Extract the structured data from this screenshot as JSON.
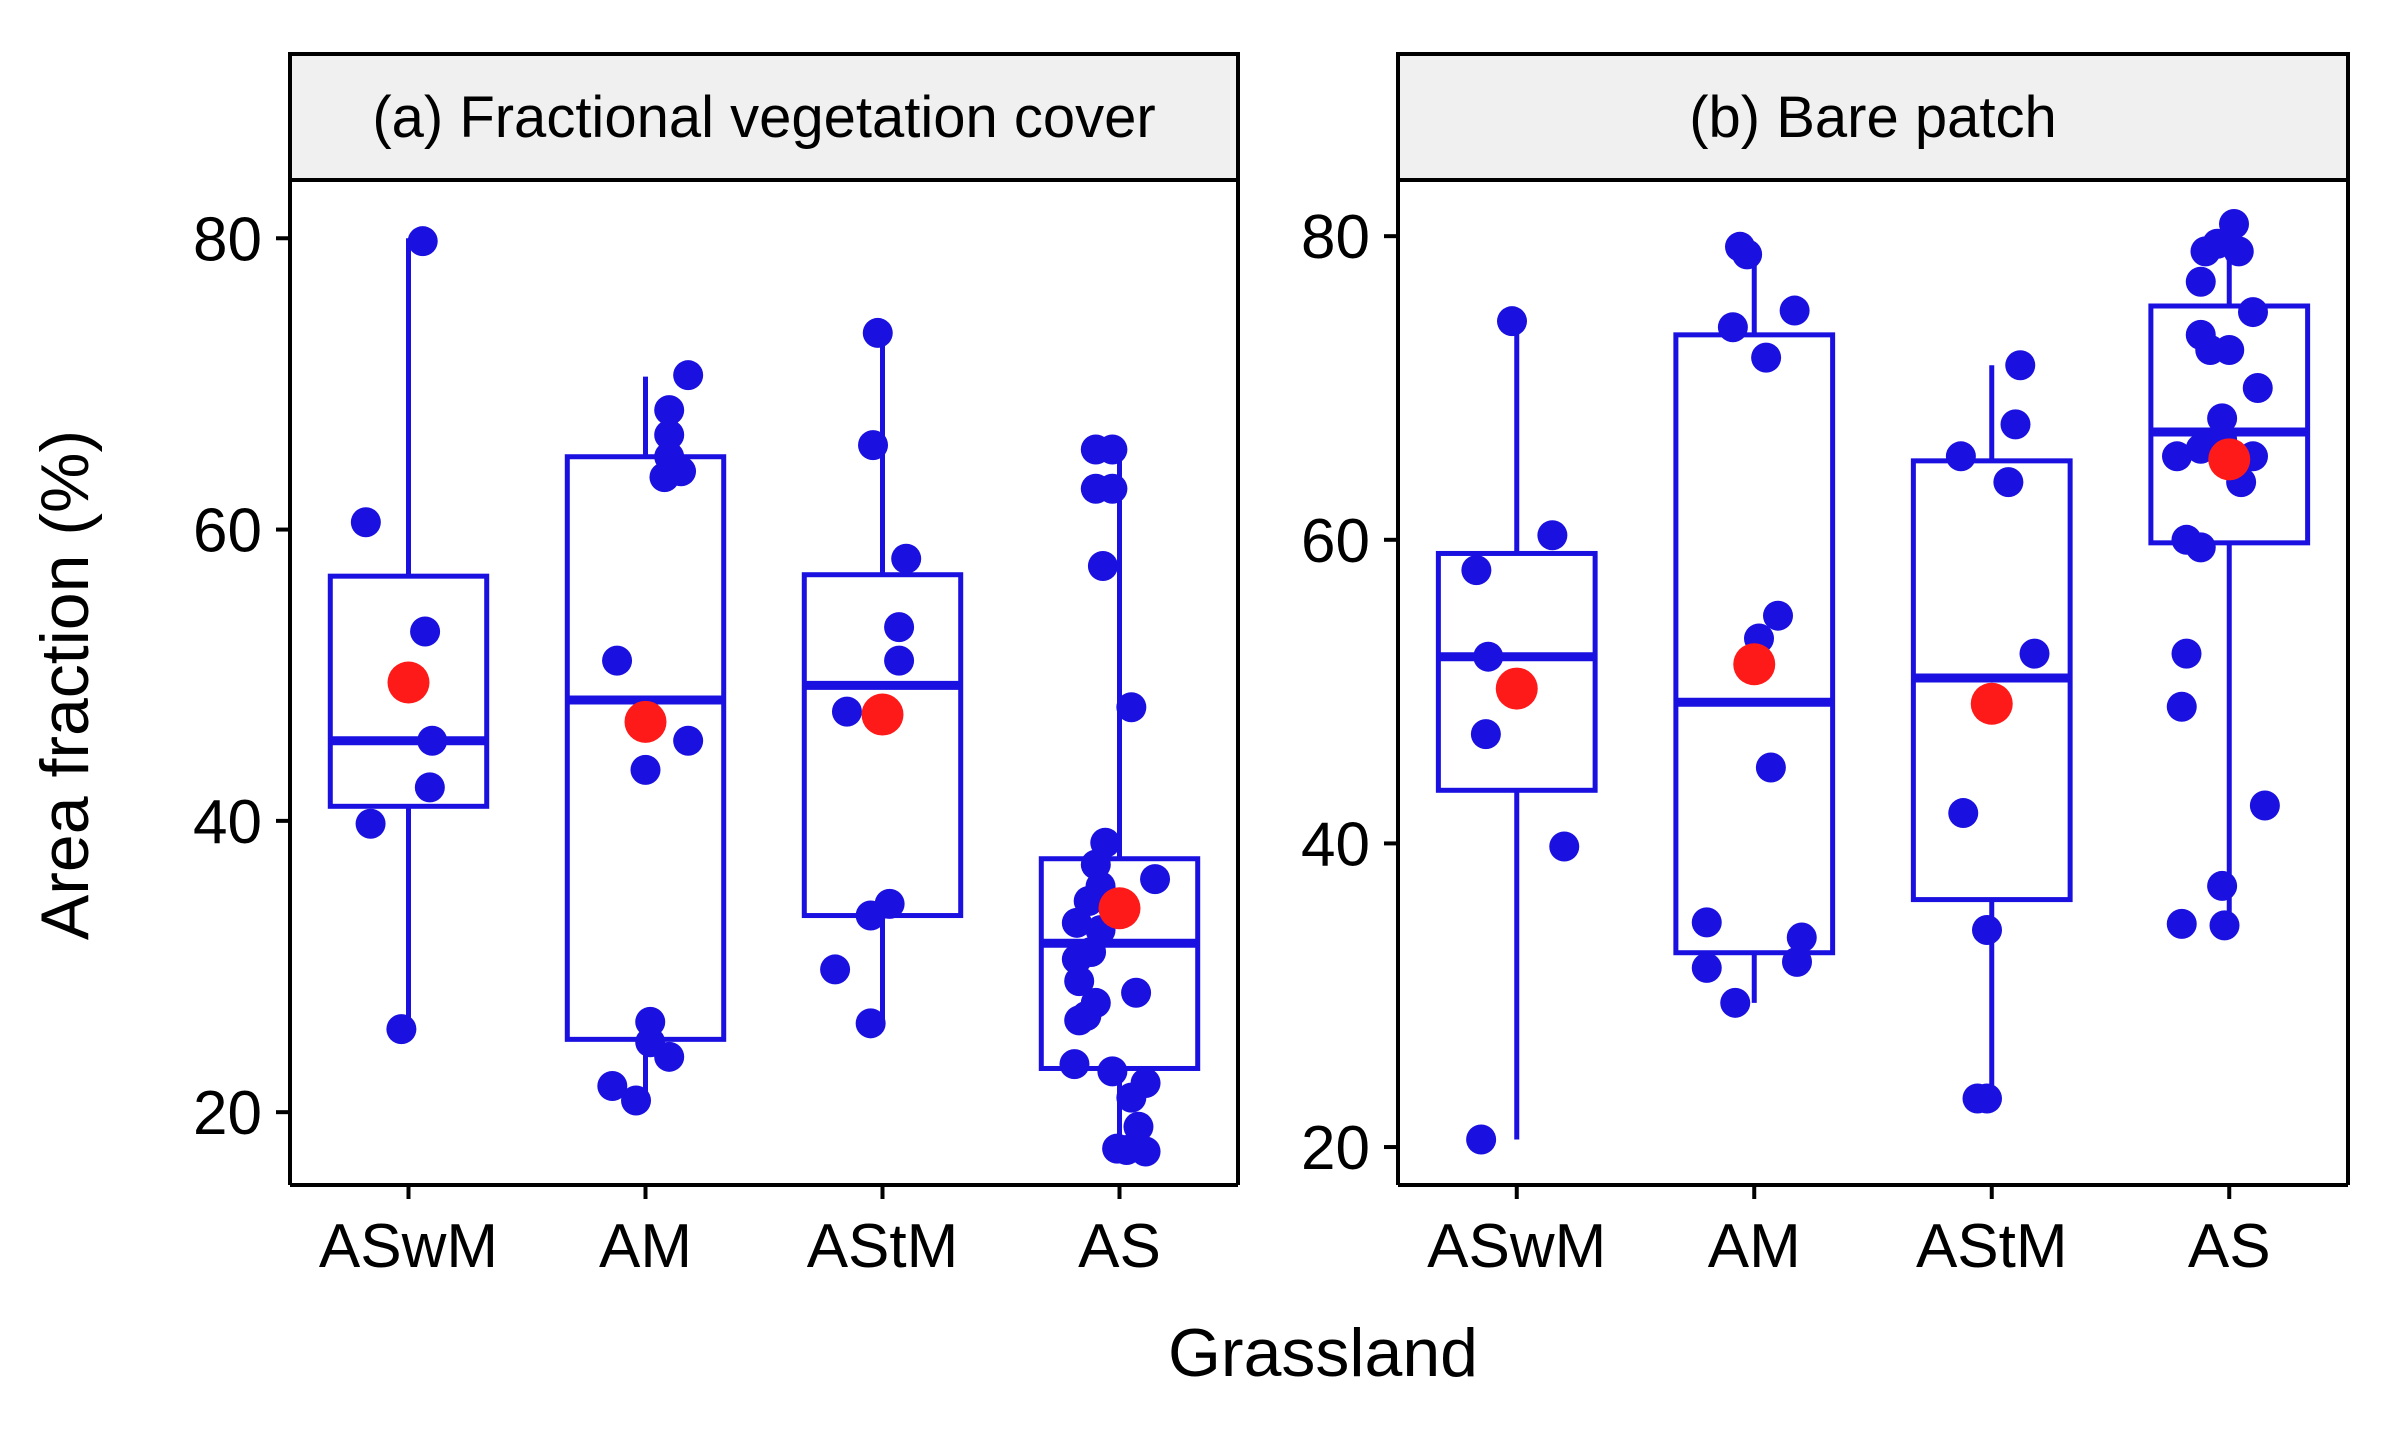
{
  "figure": {
    "ylabel": "Area fraction (%)",
    "xlabel": "Grassland"
  },
  "colors": {
    "box": "#1a10e0",
    "point": "#1a10e0",
    "mean": "#ff1a1a",
    "strip_fill": "#f0f0f0",
    "axis": "#000000"
  },
  "chart_data": [
    {
      "type": "box",
      "title": "(a) Fractional vegetation cover",
      "ylabel": "Area fraction (%)",
      "xlabel": "Grassland",
      "categories": [
        "ASwM",
        "AM",
        "AStM",
        "AS"
      ],
      "ylim": [
        15,
        84
      ],
      "yticks": [
        20,
        40,
        60,
        80
      ],
      "boxes": [
        {
          "min": 25.5,
          "q1": 41,
          "median": 45.5,
          "q3": 56.8,
          "max": 80,
          "mean": 49.5
        },
        {
          "min": 21,
          "q1": 25,
          "median": 48.3,
          "q3": 65,
          "max": 70.5,
          "mean": 46.8
        },
        {
          "min": 26,
          "q1": 33.5,
          "median": 49.3,
          "q3": 56.9,
          "max": 73.5,
          "mean": 47.3
        },
        {
          "min": 17,
          "q1": 23,
          "median": 31.6,
          "q3": 37.4,
          "max": 65.5,
          "mean": 34
        }
      ],
      "points": [
        [
          {
            "dx": -0.18,
            "y": 60.5
          },
          {
            "dx": -0.16,
            "y": 39.8
          },
          {
            "dx": -0.03,
            "y": 25.7
          },
          {
            "dx": 0.06,
            "y": 79.8
          },
          {
            "dx": 0.07,
            "y": 53
          },
          {
            "dx": 0.1,
            "y": 45.5
          },
          {
            "dx": 0.09,
            "y": 42.3
          }
        ],
        [
          {
            "dx": -0.14,
            "y": 21.8
          },
          {
            "dx": -0.04,
            "y": 20.8
          },
          {
            "dx": -0.12,
            "y": 51
          },
          {
            "dx": 0,
            "y": 43.5
          },
          {
            "dx": 0.02,
            "y": 26.2
          },
          {
            "dx": 0.02,
            "y": 24.8
          },
          {
            "dx": 0.1,
            "y": 23.8
          },
          {
            "dx": 0.08,
            "y": 63.6
          },
          {
            "dx": 0.1,
            "y": 65
          },
          {
            "dx": 0.1,
            "y": 66.5
          },
          {
            "dx": 0.1,
            "y": 68.2
          },
          {
            "dx": 0.15,
            "y": 64
          },
          {
            "dx": 0.18,
            "y": 70.6
          },
          {
            "dx": 0.18,
            "y": 45.5
          }
        ],
        [
          {
            "dx": -0.2,
            "y": 29.8
          },
          {
            "dx": -0.05,
            "y": 26.1
          },
          {
            "dx": -0.15,
            "y": 47.5
          },
          {
            "dx": -0.05,
            "y": 33.5
          },
          {
            "dx": -0.04,
            "y": 65.8
          },
          {
            "dx": -0.02,
            "y": 73.5
          },
          {
            "dx": 0.03,
            "y": 34.3
          },
          {
            "dx": 0.07,
            "y": 51
          },
          {
            "dx": 0.07,
            "y": 53.3
          },
          {
            "dx": 0.1,
            "y": 58
          }
        ],
        [
          {
            "dx": -0.19,
            "y": 23.3
          },
          {
            "dx": -0.17,
            "y": 26.3
          },
          {
            "dx": -0.14,
            "y": 26.6
          },
          {
            "dx": -0.17,
            "y": 29
          },
          {
            "dx": -0.18,
            "y": 30.5
          },
          {
            "dx": -0.18,
            "y": 33
          },
          {
            "dx": -0.12,
            "y": 31
          },
          {
            "dx": -0.1,
            "y": 27.5
          },
          {
            "dx": -0.08,
            "y": 32.5
          },
          {
            "dx": -0.13,
            "y": 34.5
          },
          {
            "dx": -0.08,
            "y": 35.5
          },
          {
            "dx": -0.1,
            "y": 37
          },
          {
            "dx": -0.06,
            "y": 38.5
          },
          {
            "dx": -0.03,
            "y": 22.8
          },
          {
            "dx": -0.07,
            "y": 57.5
          },
          {
            "dx": -0.1,
            "y": 62.8
          },
          {
            "dx": -0.1,
            "y": 65.5
          },
          {
            "dx": -0.03,
            "y": 62.8
          },
          {
            "dx": -0.03,
            "y": 65.5
          },
          {
            "dx": 0.05,
            "y": 47.8
          },
          {
            "dx": 0.07,
            "y": 28.2
          },
          {
            "dx": 0.15,
            "y": 36
          },
          {
            "dx": 0.11,
            "y": 22
          },
          {
            "dx": 0.05,
            "y": 21
          },
          {
            "dx": 0.08,
            "y": 19
          },
          {
            "dx": -0.01,
            "y": 17.5
          },
          {
            "dx": 0.03,
            "y": 17.4
          },
          {
            "dx": 0.11,
            "y": 17.3
          }
        ]
      ]
    },
    {
      "type": "box",
      "title": "(b) Bare patch",
      "ylabel": "Area fraction (%)",
      "xlabel": "Grassland",
      "categories": [
        "ASwM",
        "AM",
        "AStM",
        "AS"
      ],
      "ylim": [
        17.5,
        83.7
      ],
      "yticks": [
        20,
        40,
        60,
        80
      ],
      "boxes": [
        {
          "min": 20.5,
          "q1": 43.5,
          "median": 52.3,
          "q3": 59.1,
          "max": 74.5,
          "mean": 50.2
        },
        {
          "min": 29.5,
          "q1": 32.8,
          "median": 49.3,
          "q3": 73.5,
          "max": 79.5,
          "mean": 51.8
        },
        {
          "min": 23.2,
          "q1": 36.3,
          "median": 50.9,
          "q3": 65.2,
          "max": 71.5,
          "mean": 49.2
        },
        {
          "min": 34.5,
          "q1": 59.8,
          "median": 67.1,
          "q3": 75.4,
          "max": 80.8,
          "mean": 65.3
        }
      ],
      "points": [
        [
          {
            "dx": -0.17,
            "y": 58
          },
          {
            "dx": -0.12,
            "y": 52.3
          },
          {
            "dx": -0.13,
            "y": 47.2
          },
          {
            "dx": -0.15,
            "y": 20.5
          },
          {
            "dx": -0.02,
            "y": 74.4
          },
          {
            "dx": 0.15,
            "y": 60.3
          },
          {
            "dx": 0.2,
            "y": 39.8
          }
        ],
        [
          {
            "dx": -0.2,
            "y": 34.8
          },
          {
            "dx": -0.2,
            "y": 31.8
          },
          {
            "dx": -0.08,
            "y": 29.5
          },
          {
            "dx": -0.03,
            "y": 78.8
          },
          {
            "dx": -0.06,
            "y": 79.3
          },
          {
            "dx": -0.09,
            "y": 74
          },
          {
            "dx": 0.05,
            "y": 72
          },
          {
            "dx": 0.02,
            "y": 53.5
          },
          {
            "dx": 0.1,
            "y": 55
          },
          {
            "dx": 0.07,
            "y": 45
          },
          {
            "dx": 0.17,
            "y": 75.1
          },
          {
            "dx": 0.2,
            "y": 33.8
          },
          {
            "dx": 0.18,
            "y": 32.2
          }
        ],
        [
          {
            "dx": -0.12,
            "y": 42
          },
          {
            "dx": -0.13,
            "y": 65.5
          },
          {
            "dx": -0.02,
            "y": 34.3
          },
          {
            "dx": -0.06,
            "y": 23.2
          },
          {
            "dx": -0.02,
            "y": 23.2
          },
          {
            "dx": 0.07,
            "y": 63.8
          },
          {
            "dx": 0.1,
            "y": 67.6
          },
          {
            "dx": 0.12,
            "y": 71.5
          },
          {
            "dx": 0.18,
            "y": 52.5
          }
        ],
        [
          {
            "dx": -0.2,
            "y": 49
          },
          {
            "dx": -0.18,
            "y": 52.5
          },
          {
            "dx": -0.18,
            "y": 60
          },
          {
            "dx": -0.22,
            "y": 65.5
          },
          {
            "dx": -0.12,
            "y": 59.5
          },
          {
            "dx": -0.12,
            "y": 66
          },
          {
            "dx": -0.12,
            "y": 77
          },
          {
            "dx": -0.1,
            "y": 79
          },
          {
            "dx": -0.12,
            "y": 73.5
          },
          {
            "dx": -0.08,
            "y": 72.5
          },
          {
            "dx": -0.05,
            "y": 79.5
          },
          {
            "dx": -0.03,
            "y": 37.2
          },
          {
            "dx": -0.03,
            "y": 66.6
          },
          {
            "dx": -0.03,
            "y": 68
          },
          {
            "dx": 0,
            "y": 72.5
          },
          {
            "dx": 0.02,
            "y": 80.8
          },
          {
            "dx": 0.04,
            "y": 79
          },
          {
            "dx": 0.1,
            "y": 75
          },
          {
            "dx": 0.1,
            "y": 65.5
          },
          {
            "dx": 0.12,
            "y": 70
          },
          {
            "dx": 0.15,
            "y": 42.5
          },
          {
            "dx": 0.05,
            "y": 63.8
          },
          {
            "dx": -0.2,
            "y": 34.7
          },
          {
            "dx": -0.02,
            "y": 34.6
          }
        ]
      ]
    }
  ]
}
